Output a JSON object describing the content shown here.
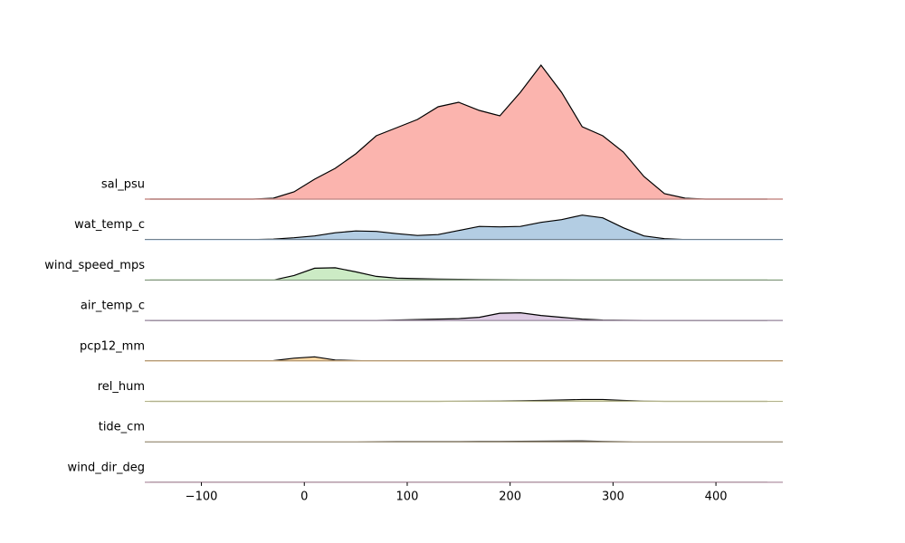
{
  "chart_data": {
    "type": "ridgeline",
    "x": [
      -150,
      -130,
      -110,
      -90,
      -70,
      -50,
      -30,
      -10,
      10,
      30,
      50,
      70,
      90,
      110,
      130,
      150,
      170,
      190,
      210,
      230,
      250,
      270,
      290,
      310,
      330,
      350,
      370,
      390,
      410,
      430,
      450
    ],
    "xlim": [
      -155,
      465
    ],
    "xticks": [
      {
        "value": -100,
        "label": "−100"
      },
      0,
      100,
      200,
      300,
      400
    ],
    "ylim": [
      0,
      148
    ],
    "series": [
      {
        "name": "sal_psu",
        "color": "#fbb4ae",
        "values": [
          0,
          0,
          0,
          0,
          0,
          0,
          1,
          8,
          22,
          34,
          50,
          70,
          79,
          88,
          102,
          107,
          98,
          92,
          118,
          148,
          118,
          80,
          70,
          52,
          25,
          6,
          1,
          0,
          0,
          0,
          0
        ]
      },
      {
        "name": "wat_temp_c",
        "color": "#b3cde3",
        "values": [
          0,
          0,
          0,
          0,
          0,
          0,
          0.5,
          2,
          4,
          7.5,
          9.5,
          9,
          6.5,
          4.5,
          5.5,
          10,
          14.5,
          14,
          14.5,
          19,
          22,
          27,
          24,
          13,
          4,
          1,
          0,
          0,
          0,
          0,
          0
        ]
      },
      {
        "name": "wind_speed_mps",
        "color": "#ccebc5",
        "values": [
          0,
          0,
          0,
          0,
          0,
          0,
          0,
          5,
          13,
          13.5,
          9,
          4,
          2,
          1.5,
          1,
          0.8,
          0.5,
          0.4,
          0.3,
          0.2,
          0.2,
          0,
          0,
          0,
          0,
          0,
          0,
          0,
          0,
          0,
          0
        ]
      },
      {
        "name": "air_temp_c",
        "color": "#decbe4",
        "values": [
          0,
          0,
          0,
          0,
          0,
          0,
          0,
          0,
          0,
          0,
          0,
          0,
          0.5,
          1,
          1.5,
          2,
          3.5,
          8,
          8.5,
          5.5,
          3.5,
          1.5,
          0.5,
          0.2,
          0,
          0,
          0,
          0,
          0,
          0,
          0
        ]
      },
      {
        "name": "pcp12_mm",
        "color": "#fed9a6",
        "values": [
          0,
          0,
          0,
          0,
          0,
          0,
          0.3,
          3,
          4.5,
          1,
          0.3,
          0,
          0,
          0,
          0,
          0,
          0,
          0,
          0,
          0,
          0,
          0,
          0,
          0,
          0,
          0,
          0,
          0,
          0,
          0,
          0
        ]
      },
      {
        "name": "rel_hum",
        "color": "#ffffcc",
        "values": [
          0,
          0,
          0,
          0,
          0,
          0,
          0,
          0,
          0,
          0,
          0,
          0,
          0,
          0,
          0,
          0.2,
          0.3,
          0.4,
          0.6,
          1,
          1.5,
          2,
          2,
          1,
          0.3,
          0,
          0,
          0,
          0,
          0,
          0
        ]
      },
      {
        "name": "tide_cm",
        "color": "#e5d8bd",
        "values": [
          0,
          0,
          0,
          0,
          0,
          0,
          0,
          0,
          0,
          0,
          0.1,
          0.2,
          0.3,
          0.3,
          0.4,
          0.4,
          0.5,
          0.5,
          0.6,
          0.7,
          0.9,
          1,
          0.5,
          0.2,
          0,
          0,
          0,
          0,
          0,
          0,
          0
        ]
      },
      {
        "name": "wind_dir_deg",
        "color": "#fddaec",
        "values": [
          0,
          0,
          0,
          0,
          0,
          0,
          0,
          0,
          0,
          0,
          0,
          0,
          0,
          0,
          0,
          0,
          0,
          0,
          0,
          0,
          0,
          0,
          0,
          0,
          0,
          0,
          0,
          0,
          0,
          0,
          0
        ]
      }
    ]
  }
}
